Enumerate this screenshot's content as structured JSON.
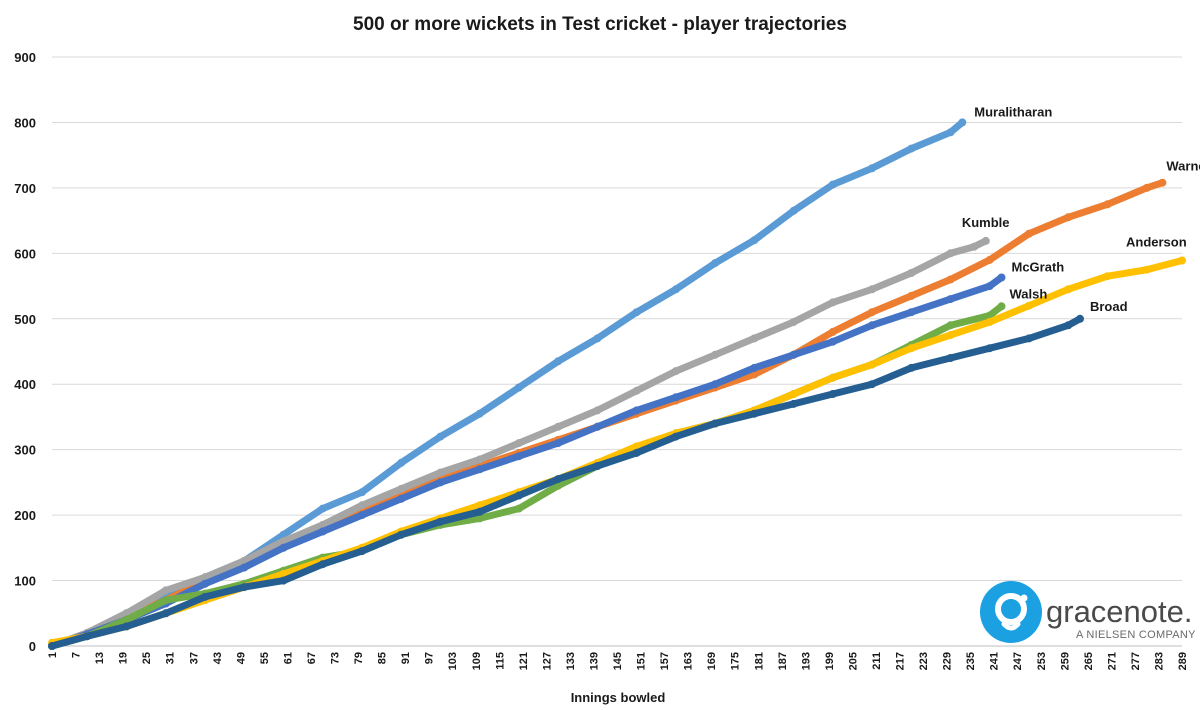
{
  "chart_data": {
    "type": "line",
    "title": "500 or more wickets in Test cricket - player trajectories",
    "xlabel": "Innings bowled",
    "ylabel": "",
    "xlim": [
      1,
      289
    ],
    "ylim": [
      0,
      900
    ],
    "yticks": [
      0,
      100,
      200,
      300,
      400,
      500,
      600,
      700,
      800,
      900
    ],
    "xticks": [
      1,
      7,
      13,
      19,
      25,
      31,
      37,
      43,
      49,
      55,
      61,
      67,
      73,
      79,
      85,
      91,
      97,
      103,
      109,
      115,
      121,
      127,
      133,
      139,
      145,
      151,
      157,
      163,
      169,
      175,
      181,
      187,
      193,
      199,
      205,
      211,
      217,
      223,
      229,
      235,
      241,
      247,
      253,
      259,
      265,
      271,
      277,
      283,
      289
    ],
    "grid": true,
    "legend": "none (series labelled at line ends)",
    "series": [
      {
        "name": "Muralitharan",
        "color": "#5b9bd5",
        "points": [
          [
            1,
            0
          ],
          [
            10,
            20
          ],
          [
            20,
            50
          ],
          [
            30,
            80
          ],
          [
            40,
            105
          ],
          [
            50,
            130
          ],
          [
            60,
            170
          ],
          [
            70,
            210
          ],
          [
            80,
            235
          ],
          [
            90,
            280
          ],
          [
            100,
            320
          ],
          [
            110,
            355
          ],
          [
            120,
            395
          ],
          [
            130,
            435
          ],
          [
            140,
            470
          ],
          [
            150,
            510
          ],
          [
            160,
            545
          ],
          [
            170,
            585
          ],
          [
            180,
            620
          ],
          [
            190,
            665
          ],
          [
            200,
            705
          ],
          [
            210,
            730
          ],
          [
            220,
            760
          ],
          [
            230,
            785
          ],
          [
            233,
            800
          ]
        ]
      },
      {
        "name": "Warne",
        "color": "#ed7d31",
        "points": [
          [
            1,
            0
          ],
          [
            10,
            20
          ],
          [
            20,
            45
          ],
          [
            30,
            70
          ],
          [
            40,
            100
          ],
          [
            50,
            130
          ],
          [
            60,
            160
          ],
          [
            70,
            180
          ],
          [
            80,
            205
          ],
          [
            90,
            230
          ],
          [
            100,
            255
          ],
          [
            110,
            275
          ],
          [
            120,
            295
          ],
          [
            130,
            315
          ],
          [
            140,
            335
          ],
          [
            150,
            355
          ],
          [
            160,
            375
          ],
          [
            170,
            395
          ],
          [
            180,
            415
          ],
          [
            190,
            445
          ],
          [
            200,
            480
          ],
          [
            210,
            510
          ],
          [
            220,
            535
          ],
          [
            230,
            560
          ],
          [
            240,
            590
          ],
          [
            250,
            630
          ],
          [
            260,
            655
          ],
          [
            270,
            675
          ],
          [
            280,
            700
          ],
          [
            284,
            708
          ]
        ]
      },
      {
        "name": "Kumble",
        "color": "#a5a5a5",
        "points": [
          [
            1,
            0
          ],
          [
            10,
            20
          ],
          [
            20,
            50
          ],
          [
            30,
            85
          ],
          [
            40,
            105
          ],
          [
            50,
            130
          ],
          [
            60,
            160
          ],
          [
            70,
            185
          ],
          [
            80,
            215
          ],
          [
            90,
            240
          ],
          [
            100,
            265
          ],
          [
            110,
            285
          ],
          [
            120,
            310
          ],
          [
            130,
            335
          ],
          [
            140,
            360
          ],
          [
            150,
            390
          ],
          [
            160,
            420
          ],
          [
            170,
            445
          ],
          [
            180,
            470
          ],
          [
            190,
            495
          ],
          [
            200,
            525
          ],
          [
            210,
            545
          ],
          [
            220,
            570
          ],
          [
            230,
            600
          ],
          [
            236,
            610
          ],
          [
            239,
            619
          ]
        ]
      },
      {
        "name": "McGrath",
        "color": "#4472c4",
        "points": [
          [
            1,
            0
          ],
          [
            10,
            18
          ],
          [
            20,
            40
          ],
          [
            30,
            65
          ],
          [
            40,
            95
          ],
          [
            50,
            120
          ],
          [
            60,
            150
          ],
          [
            70,
            175
          ],
          [
            80,
            200
          ],
          [
            90,
            225
          ],
          [
            100,
            250
          ],
          [
            110,
            270
          ],
          [
            120,
            290
          ],
          [
            130,
            310
          ],
          [
            140,
            335
          ],
          [
            150,
            360
          ],
          [
            160,
            380
          ],
          [
            170,
            400
          ],
          [
            180,
            425
          ],
          [
            190,
            445
          ],
          [
            200,
            465
          ],
          [
            210,
            490
          ],
          [
            220,
            510
          ],
          [
            230,
            530
          ],
          [
            240,
            550
          ],
          [
            243,
            563
          ]
        ]
      },
      {
        "name": "Walsh",
        "color": "#70ad47",
        "points": [
          [
            1,
            0
          ],
          [
            10,
            15
          ],
          [
            20,
            40
          ],
          [
            30,
            70
          ],
          [
            40,
            80
          ],
          [
            50,
            95
          ],
          [
            60,
            115
          ],
          [
            70,
            135
          ],
          [
            80,
            145
          ],
          [
            90,
            170
          ],
          [
            100,
            185
          ],
          [
            110,
            195
          ],
          [
            120,
            210
          ],
          [
            130,
            245
          ],
          [
            140,
            275
          ],
          [
            150,
            300
          ],
          [
            160,
            325
          ],
          [
            170,
            340
          ],
          [
            180,
            360
          ],
          [
            190,
            385
          ],
          [
            200,
            410
          ],
          [
            210,
            430
          ],
          [
            220,
            460
          ],
          [
            230,
            490
          ],
          [
            240,
            505
          ],
          [
            243,
            519
          ]
        ]
      },
      {
        "name": "Anderson",
        "color": "#ffc000",
        "points": [
          [
            1,
            5
          ],
          [
            10,
            15
          ],
          [
            20,
            30
          ],
          [
            30,
            50
          ],
          [
            40,
            70
          ],
          [
            50,
            90
          ],
          [
            60,
            110
          ],
          [
            70,
            130
          ],
          [
            80,
            150
          ],
          [
            90,
            175
          ],
          [
            100,
            195
          ],
          [
            110,
            215
          ],
          [
            120,
            235
          ],
          [
            130,
            255
          ],
          [
            140,
            280
          ],
          [
            150,
            305
          ],
          [
            160,
            325
          ],
          [
            170,
            340
          ],
          [
            180,
            360
          ],
          [
            190,
            385
          ],
          [
            200,
            410
          ],
          [
            210,
            430
          ],
          [
            220,
            455
          ],
          [
            230,
            475
          ],
          [
            240,
            495
          ],
          [
            250,
            520
          ],
          [
            260,
            545
          ],
          [
            270,
            565
          ],
          [
            280,
            575
          ],
          [
            289,
            589
          ]
        ]
      },
      {
        "name": "Broad",
        "color": "#255e91",
        "points": [
          [
            1,
            0
          ],
          [
            10,
            15
          ],
          [
            20,
            30
          ],
          [
            30,
            50
          ],
          [
            40,
            75
          ],
          [
            50,
            90
          ],
          [
            60,
            100
          ],
          [
            70,
            125
          ],
          [
            80,
            145
          ],
          [
            90,
            170
          ],
          [
            100,
            190
          ],
          [
            110,
            205
          ],
          [
            120,
            230
          ],
          [
            130,
            255
          ],
          [
            140,
            275
          ],
          [
            150,
            295
          ],
          [
            160,
            320
          ],
          [
            170,
            340
          ],
          [
            180,
            355
          ],
          [
            190,
            370
          ],
          [
            200,
            385
          ],
          [
            210,
            400
          ],
          [
            220,
            425
          ],
          [
            230,
            440
          ],
          [
            240,
            455
          ],
          [
            250,
            470
          ],
          [
            260,
            490
          ],
          [
            263,
            500
          ]
        ]
      }
    ]
  },
  "logo": {
    "icon": "gracenote-g-icon",
    "wordmark": "gracenote.",
    "tagline": "A NIELSEN COMPANY",
    "color": "#1ba1e2"
  }
}
